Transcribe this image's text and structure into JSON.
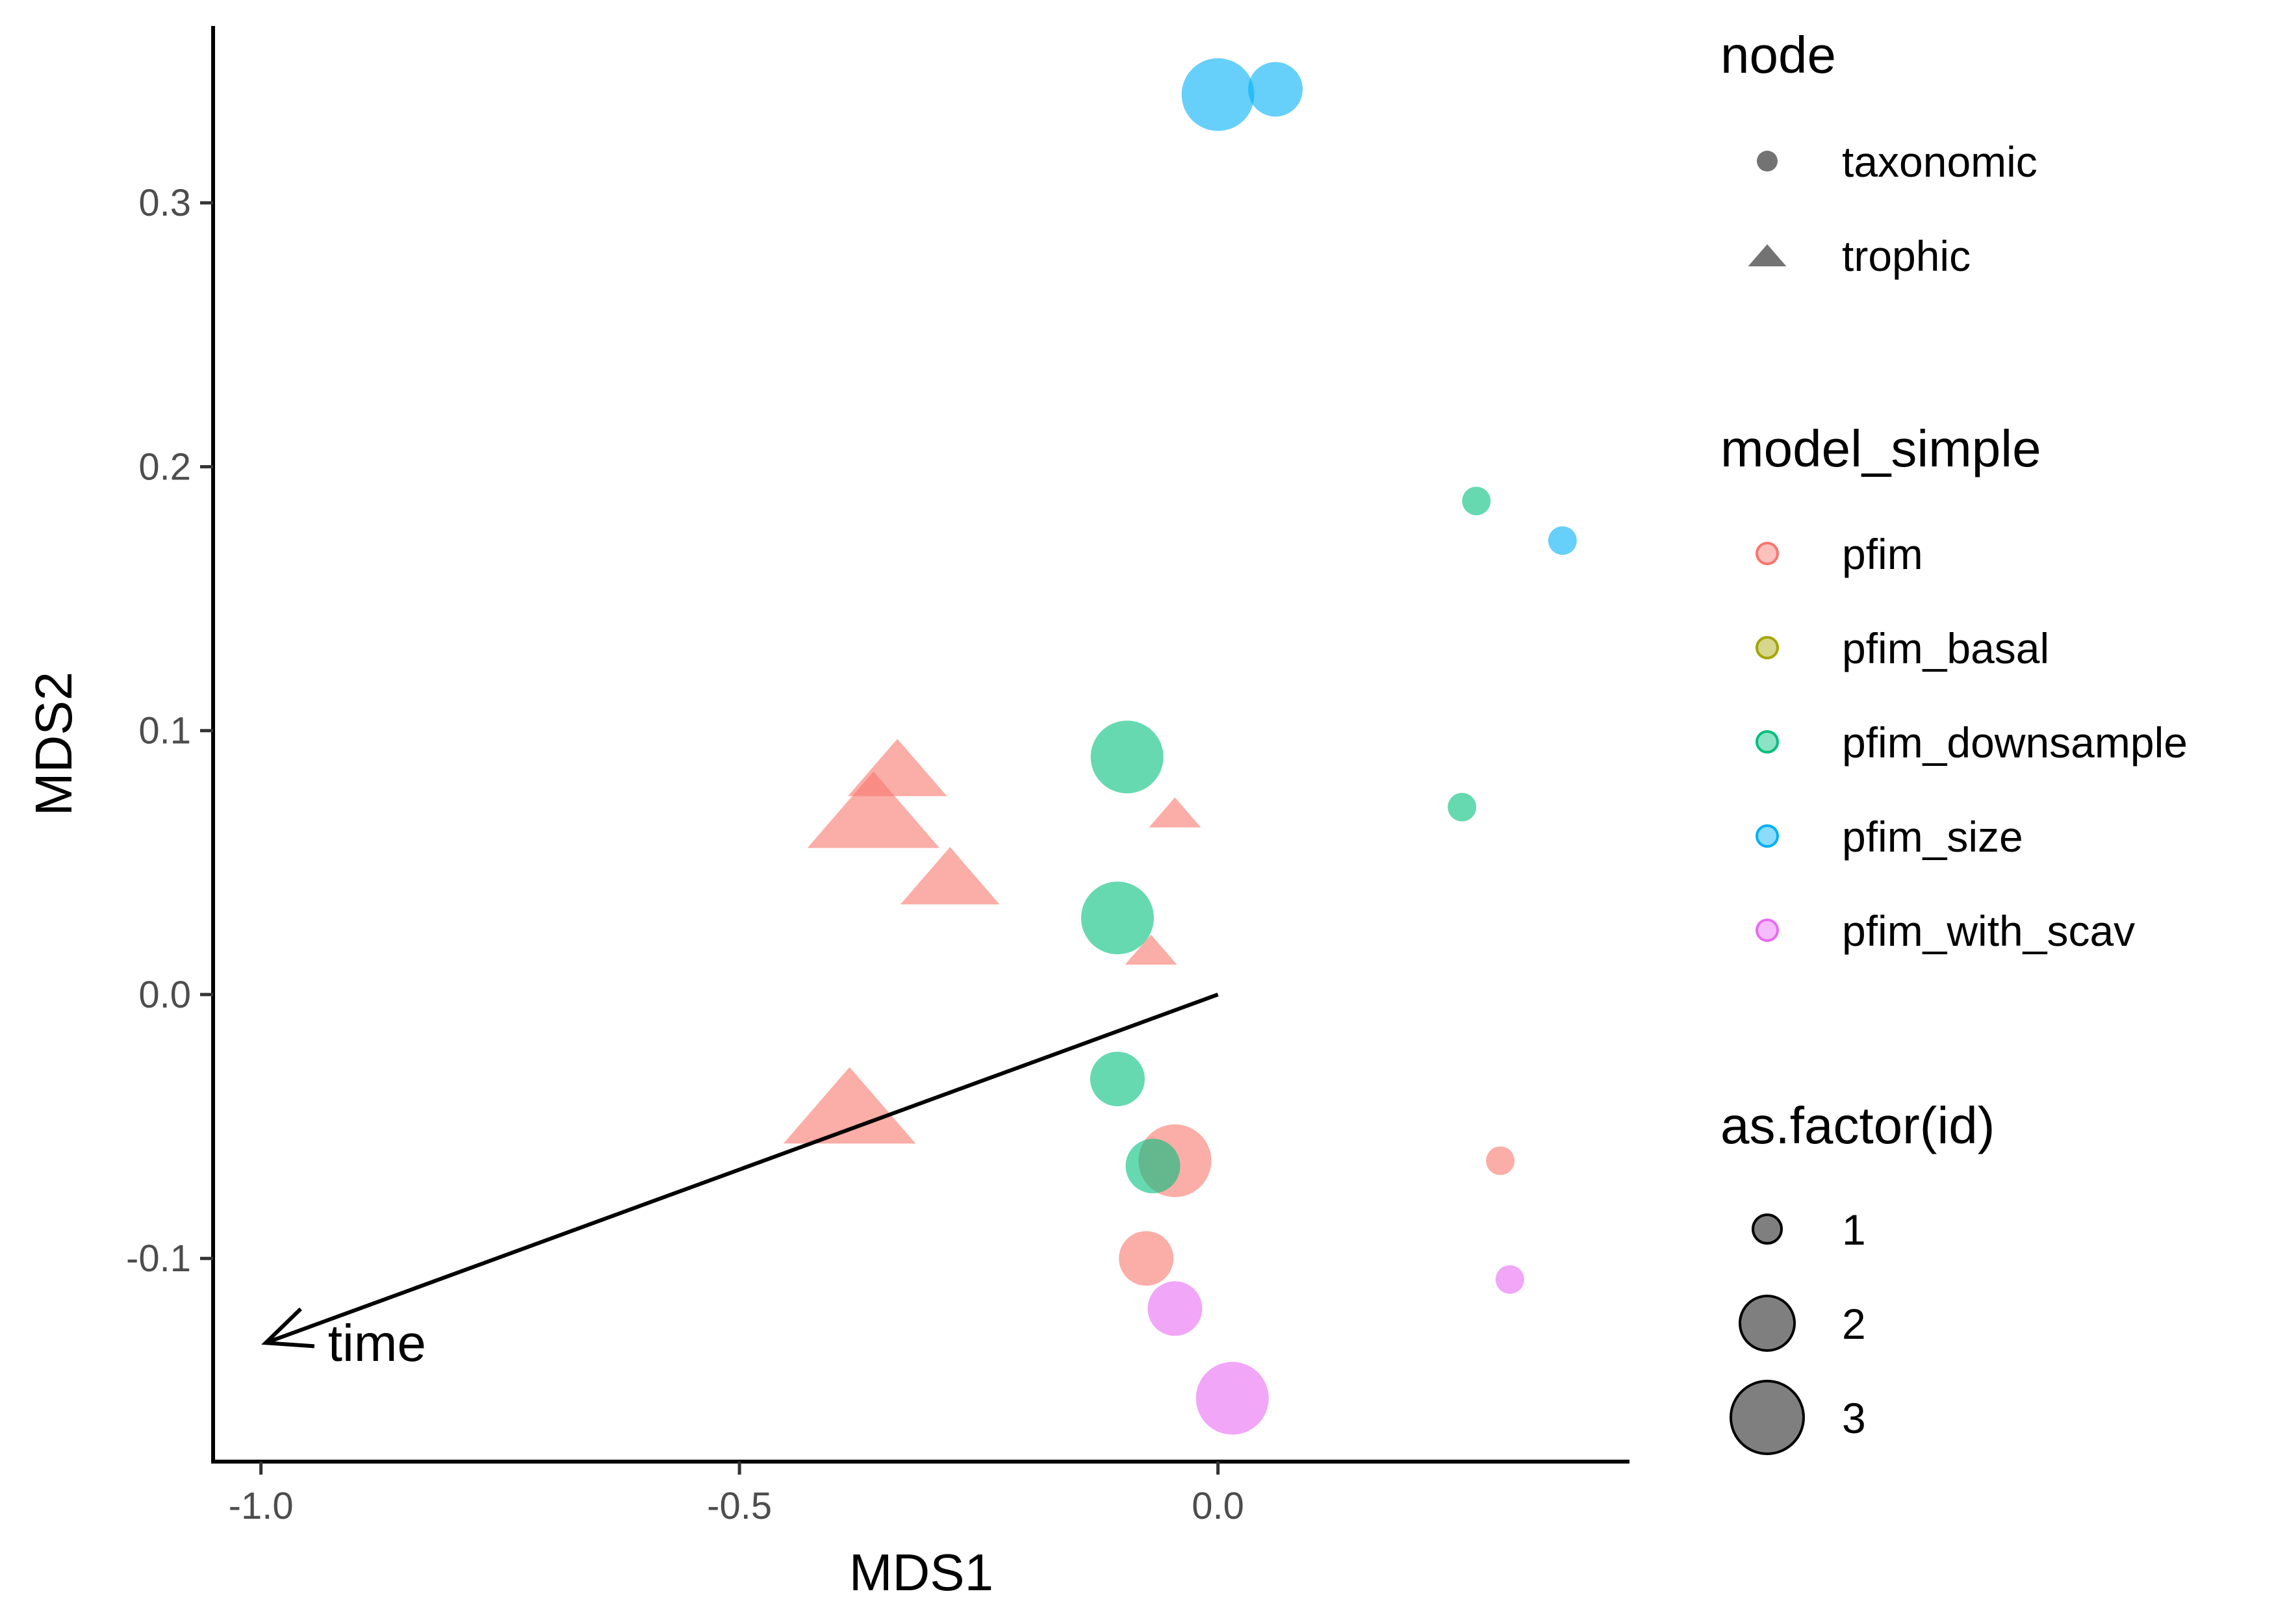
{
  "chart_data": {
    "type": "scatter",
    "xlabel": "MDS1",
    "ylabel": "MDS2",
    "xlim": [
      -1.05,
      0.43
    ],
    "ylim": [
      -0.177,
      0.367
    ],
    "x_ticks": [
      -1.0,
      -0.5,
      0.0
    ],
    "x_tick_labels": [
      "-1.0",
      "-0.5",
      "0.0"
    ],
    "y_ticks": [
      -0.1,
      0.0,
      0.1,
      0.2,
      0.3
    ],
    "y_tick_labels": [
      "-0.1",
      "0.0",
      "0.1",
      "0.2",
      "0.3"
    ],
    "grid": false,
    "point_alpha": 0.6,
    "legend_position": "right",
    "legends": {
      "node": {
        "title": "node",
        "items": [
          {
            "label": "taxonomic",
            "shape": "circle"
          },
          {
            "label": "trophic",
            "shape": "triangle"
          }
        ]
      },
      "model_simple": {
        "title": "model_simple",
        "items": [
          {
            "label": "pfim",
            "color": "#F8766D"
          },
          {
            "label": "pfim_basal",
            "color": "#A3A500"
          },
          {
            "label": "pfim_downsample",
            "color": "#00BF7D"
          },
          {
            "label": "pfim_size",
            "color": "#00B0F6"
          },
          {
            "label": "pfim_with_scav",
            "color": "#E76BF3"
          }
        ]
      },
      "size": {
        "title": "as.factor(id)",
        "items": [
          {
            "label": "1",
            "size": 1
          },
          {
            "label": "2",
            "size": 2
          },
          {
            "label": "3",
            "size": 3
          }
        ]
      }
    },
    "points": [
      {
        "x": 0.0,
        "y": 0.341,
        "model": "pfim_size",
        "node": "taxonomic",
        "id": 3
      },
      {
        "x": 0.06,
        "y": 0.343,
        "model": "pfim_size",
        "node": "taxonomic",
        "id": 2
      },
      {
        "x": 0.27,
        "y": 0.187,
        "model": "pfim_downsample",
        "node": "taxonomic",
        "id": 1
      },
      {
        "x": 0.36,
        "y": 0.172,
        "model": "pfim_size",
        "node": "taxonomic",
        "id": 1
      },
      {
        "x": -0.335,
        "y": 0.086,
        "model": "pfim",
        "node": "trophic",
        "id": 2
      },
      {
        "x": -0.36,
        "y": 0.07,
        "model": "pfim",
        "node": "trophic",
        "id": 3
      },
      {
        "x": -0.28,
        "y": 0.045,
        "model": "pfim",
        "node": "trophic",
        "id": 2
      },
      {
        "x": -0.095,
        "y": 0.09,
        "model": "pfim_downsample",
        "node": "taxonomic",
        "id": 3
      },
      {
        "x": -0.045,
        "y": 0.069,
        "model": "pfim",
        "node": "trophic",
        "id": 1
      },
      {
        "x": 0.255,
        "y": 0.071,
        "model": "pfim_downsample",
        "node": "taxonomic",
        "id": 1
      },
      {
        "x": -0.105,
        "y": 0.029,
        "model": "pfim_downsample",
        "node": "taxonomic",
        "id": 3
      },
      {
        "x": -0.07,
        "y": 0.017,
        "model": "pfim",
        "node": "trophic",
        "id": 1
      },
      {
        "x": -0.385,
        "y": -0.042,
        "model": "pfim",
        "node": "trophic",
        "id": 3
      },
      {
        "x": -0.105,
        "y": -0.032,
        "model": "pfim_downsample",
        "node": "taxonomic",
        "id": 2
      },
      {
        "x": -0.045,
        "y": -0.063,
        "model": "pfim",
        "node": "taxonomic",
        "id": 3
      },
      {
        "x": -0.068,
        "y": -0.065,
        "model": "pfim_downsample",
        "node": "taxonomic",
        "id": 2
      },
      {
        "x": 0.295,
        "y": -0.063,
        "model": "pfim",
        "node": "taxonomic",
        "id": 1
      },
      {
        "x": -0.075,
        "y": -0.1,
        "model": "pfim",
        "node": "taxonomic",
        "id": 2
      },
      {
        "x": -0.045,
        "y": -0.119,
        "model": "pfim_with_scav",
        "node": "taxonomic",
        "id": 2
      },
      {
        "x": 0.305,
        "y": -0.108,
        "model": "pfim_with_scav",
        "node": "taxonomic",
        "id": 1
      },
      {
        "x": 0.015,
        "y": -0.153,
        "model": "pfim_with_scav",
        "node": "taxonomic",
        "id": 3
      }
    ],
    "annotations": [
      {
        "type": "arrow",
        "from": [
          0.0,
          0.0
        ],
        "to": [
          -0.995,
          -0.132
        ]
      },
      {
        "type": "text",
        "text": "time",
        "x": -0.93,
        "y": -0.132
      }
    ]
  }
}
